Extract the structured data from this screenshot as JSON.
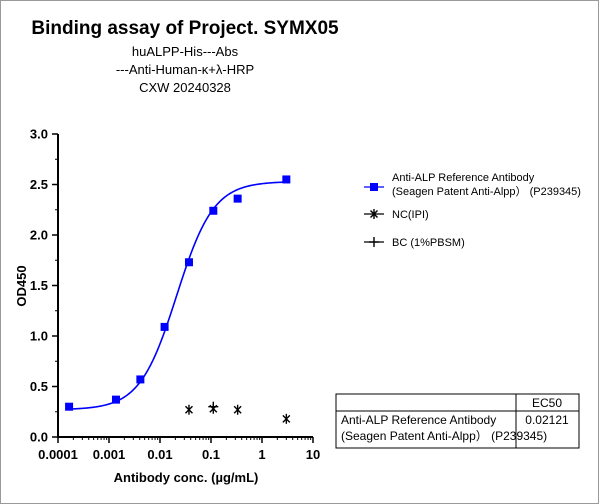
{
  "chart_data": {
    "type": "scatter",
    "title": "Binding assay of  Project. SYMX05",
    "subtitle_lines": [
      "huALPP-His---Abs",
      "---Anti-Human-κ+λ-HRP",
      "CXW   20240328"
    ],
    "xlabel": "Antibody conc. (µg/mL)",
    "ylabel": "OD450",
    "xscale": "log",
    "xlim": [
      0.0001,
      10
    ],
    "ylim": [
      0.0,
      3.0
    ],
    "x_tick_labels": [
      "0.0001",
      "0.001",
      "0.01",
      "0.1",
      "1",
      "10"
    ],
    "y_tick_labels": [
      "0.0",
      "0.5",
      "1.0",
      "1.5",
      "2.0",
      "2.5",
      "3.0"
    ],
    "series": [
      {
        "name": "Anti-ALP Reference Antibody (Seagen Patent Anti-Alpp） (P239345)",
        "legend_lines": [
          "Anti-ALP Reference Antibody",
          "(Seagen Patent Anti-Alpp）  (P239345)"
        ],
        "marker": "square",
        "color": "#0000ff",
        "fit": "4PL",
        "x": [
          0.000165,
          0.00137,
          0.00412,
          0.0123,
          0.037,
          0.111,
          0.333,
          3.0
        ],
        "y": [
          0.3,
          0.37,
          0.57,
          1.09,
          1.73,
          2.24,
          2.36,
          2.55
        ]
      },
      {
        "name": "NC(IPI)",
        "legend_lines": [
          "NC(IPI)"
        ],
        "marker": "x",
        "color": "#000000",
        "x": [
          0.037,
          0.111,
          0.333,
          3.0
        ],
        "y": [
          0.27,
          0.28,
          0.27,
          0.18
        ]
      },
      {
        "name": "BC (1%PBSM)",
        "legend_lines": [
          "BC (1%PBSM)"
        ],
        "marker": "plus",
        "color": "#000000",
        "x": [
          0.111
        ],
        "y": [
          0.3
        ]
      }
    ],
    "ec50_table": {
      "header": "EC50",
      "row_label_lines": [
        "Anti-ALP Reference Antibody",
        "(Seagen Patent Anti-Alpp）  (P239345)"
      ],
      "value": "0.02121"
    },
    "legend_position": "right",
    "grid": false
  }
}
